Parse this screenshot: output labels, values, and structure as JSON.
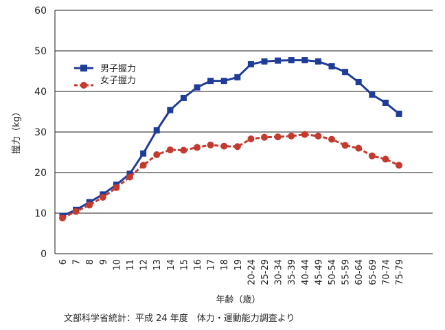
{
  "chart_data": {
    "type": "line",
    "x": [
      "6",
      "7",
      "8",
      "9",
      "10",
      "11",
      "12",
      "13",
      "14",
      "15",
      "16",
      "17",
      "18",
      "19",
      "20-24",
      "25-29",
      "30-34",
      "35-39",
      "40-44",
      "45-49",
      "50-54",
      "55-59",
      "60-64",
      "65-69",
      "70-74",
      "75-79"
    ],
    "series": [
      {
        "name": "男子握力",
        "color": "#1f3c99",
        "marker": "square",
        "line": "solid",
        "values": [
          9.3,
          10.8,
          12.7,
          14.6,
          17.0,
          19.7,
          24.7,
          30.4,
          35.4,
          38.4,
          41.0,
          42.6,
          42.6,
          43.5,
          46.7,
          47.4,
          47.6,
          47.7,
          47.7,
          47.4,
          46.2,
          44.8,
          42.3,
          39.2,
          37.2,
          34.5
        ]
      },
      {
        "name": "女子握力",
        "color": "#c53a2e",
        "marker": "circle",
        "line": "dashed",
        "values": [
          8.8,
          10.4,
          12.0,
          13.9,
          16.3,
          18.9,
          21.8,
          24.4,
          25.6,
          25.5,
          26.2,
          26.8,
          26.5,
          26.4,
          28.3,
          28.7,
          28.8,
          29.0,
          29.4,
          29.0,
          28.2,
          26.7,
          26.0,
          24.1,
          23.3,
          21.8
        ]
      }
    ],
    "ylim": [
      0,
      60
    ],
    "yticks": [
      0,
      10,
      20,
      30,
      40,
      50,
      60
    ],
    "ylabel": "握力（kg）",
    "xlabel": "年齢（歳）",
    "grid": "horizontal",
    "legend": "upper-left"
  },
  "source_note": "文部科学省統計：平成 24 年度　体力・運動能力調査より"
}
